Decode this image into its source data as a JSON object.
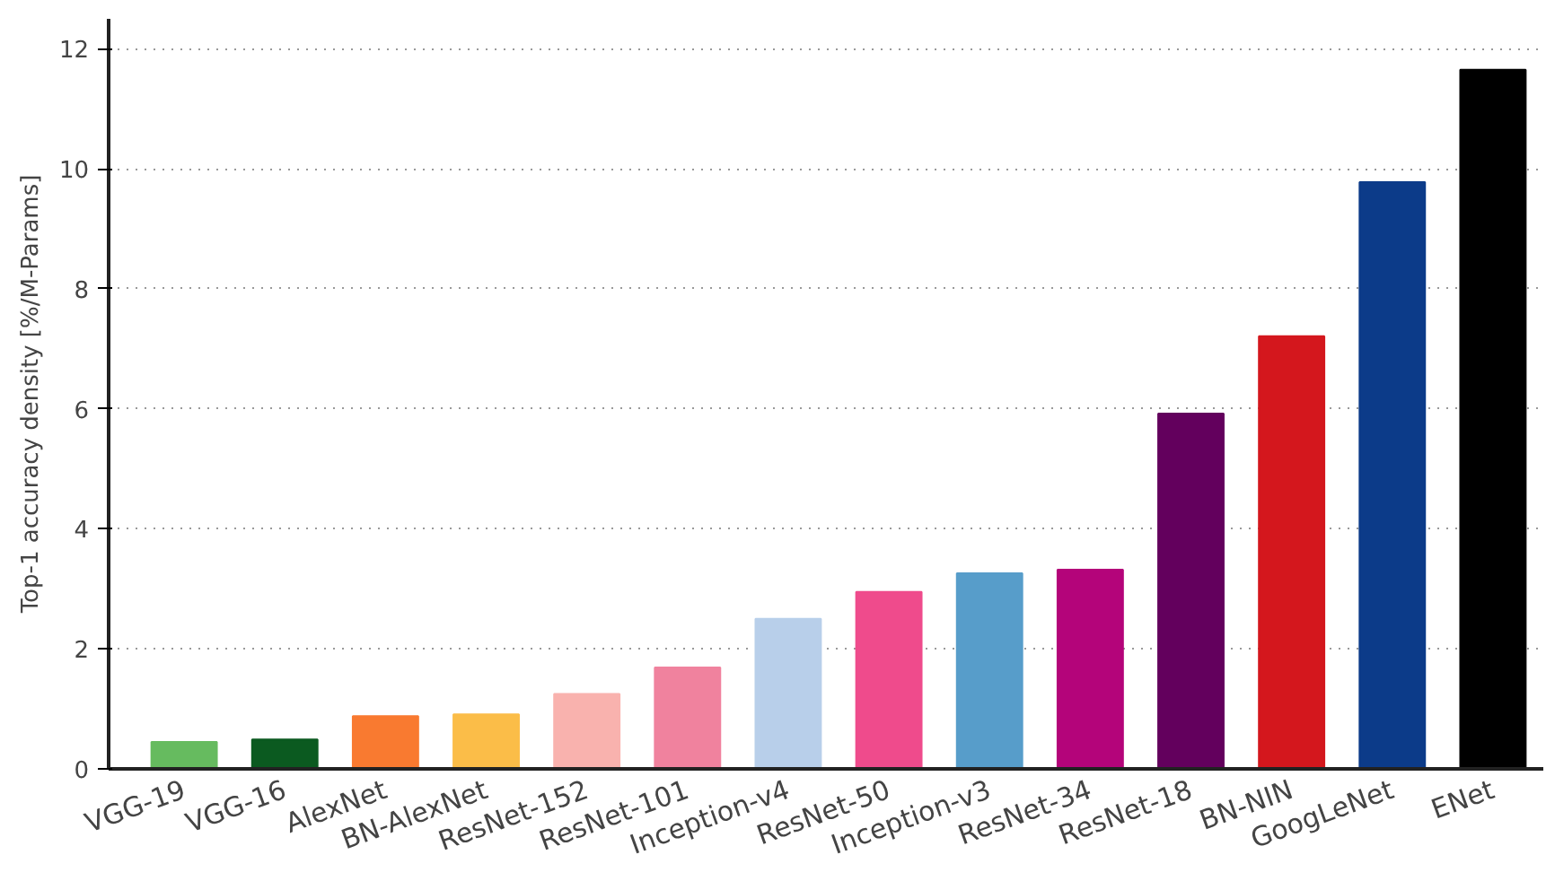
{
  "chart_data": {
    "type": "bar",
    "ylabel": "Top-1 accuracy density [%/M-Params]",
    "categories": [
      "VGG-19",
      "VGG-16",
      "AlexNet",
      "BN-AlexNet",
      "ResNet-152",
      "ResNet-101",
      "Inception-v4",
      "ResNet-50",
      "Inception-v3",
      "ResNet-34",
      "ResNet-18",
      "BN-NIN",
      "GoogLeNet",
      "ENet"
    ],
    "values": [
      0.45,
      0.49,
      0.88,
      0.91,
      1.25,
      1.69,
      2.5,
      2.95,
      3.26,
      3.32,
      5.92,
      7.21,
      9.78,
      11.65
    ],
    "colors": [
      "#66bb5f",
      "#0b5a20",
      "#f97a30",
      "#fbbd48",
      "#f9b2ae",
      "#f0829e",
      "#b8cfea",
      "#ef4b8c",
      "#579dca",
      "#b4047a",
      "#63005d",
      "#d4171d",
      "#0c3b89",
      "#000000"
    ],
    "ylim": [
      0,
      12.5
    ],
    "yticks": [
      0,
      2,
      4,
      6,
      8,
      10,
      12
    ],
    "grid": "y"
  }
}
